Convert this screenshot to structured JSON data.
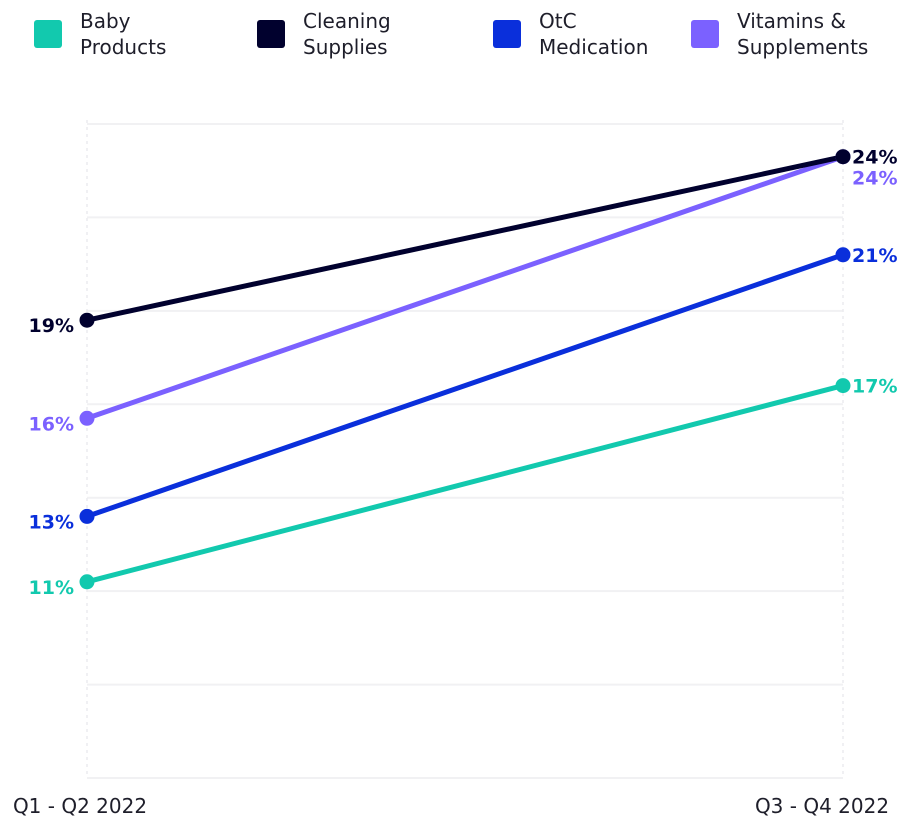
{
  "legend": [
    {
      "label": "Baby\nProducts",
      "color": "#12c9ae"
    },
    {
      "label": "Cleaning\nSupplies",
      "color": "#01012e"
    },
    {
      "label": "OtC\nMedication",
      "color": "#0a2fdb"
    },
    {
      "label": "Vitamins &\nSupplements",
      "color": "#7b61ff"
    }
  ],
  "chart_data": {
    "type": "line",
    "x": [
      "Q1 - Q2 2022",
      "Q3 - Q4 2022"
    ],
    "ylim": [
      5,
      25
    ],
    "grid": true,
    "legend_position": "top",
    "series": [
      {
        "name": "Baby Products",
        "values": [
          11,
          17
        ],
        "labels": [
          "11%",
          "17%"
        ],
        "color": "#12c9ae"
      },
      {
        "name": "Cleaning Supplies",
        "values": [
          19,
          24
        ],
        "labels": [
          "19%",
          "24%"
        ],
        "color": "#01012e"
      },
      {
        "name": "OtC Medication",
        "values": [
          13,
          21
        ],
        "labels": [
          "13%",
          "21%"
        ],
        "color": "#0a2fdb"
      },
      {
        "name": "Vitamins & Supplements",
        "values": [
          16,
          24
        ],
        "labels": [
          "16%",
          "24%"
        ],
        "color": "#7b61ff"
      }
    ]
  }
}
